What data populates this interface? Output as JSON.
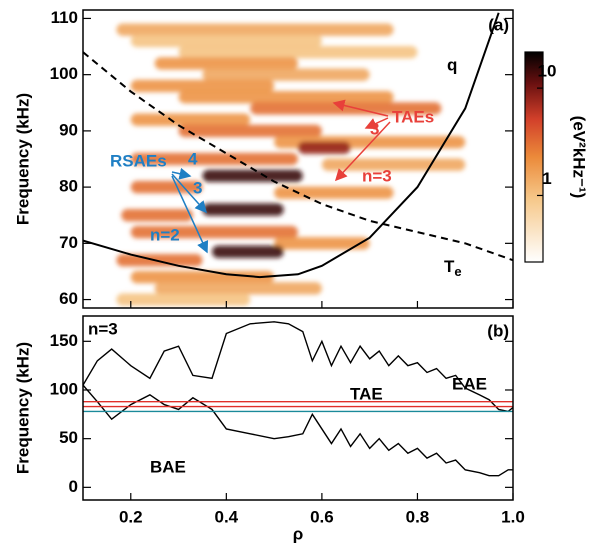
{
  "chart_data": [
    {
      "type": "spectrogram",
      "label": "(a)",
      "y_label": "Frequency (kHz)",
      "xlim": [
        0.1,
        1.0
      ],
      "ylim": [
        58.5,
        111.5
      ],
      "yticks": [
        60,
        70,
        80,
        90,
        100,
        110
      ],
      "colorbar": {
        "label": "(eV²kHz⁻¹)",
        "lim": [
          0.24,
          21.7
        ],
        "ticks": [
          1,
          10
        ],
        "log": true
      },
      "bands": {
        "freq": [
          108,
          106,
          104,
          102,
          100,
          98,
          96,
          94,
          92,
          90,
          88,
          87,
          85,
          84,
          82,
          80,
          79,
          76,
          75,
          72,
          70,
          68.5,
          67,
          64,
          62,
          60
        ],
        "rho_start": [
          0.17,
          0.2,
          0.3,
          0.25,
          0.35,
          0.2,
          0.3,
          0.45,
          0.2,
          0.3,
          0.5,
          0.55,
          0.2,
          0.6,
          0.35,
          0.2,
          0.5,
          0.35,
          0.18,
          0.2,
          0.5,
          0.37,
          0.17,
          0.2,
          0.25,
          0.17
        ],
        "rho_end": [
          0.75,
          0.6,
          0.8,
          0.55,
          0.7,
          0.5,
          0.75,
          0.85,
          0.45,
          0.6,
          0.9,
          0.66,
          0.55,
          0.9,
          0.56,
          0.35,
          0.75,
          0.52,
          0.33,
          0.55,
          0.7,
          0.52,
          0.35,
          0.5,
          0.6,
          0.45
        ],
        "level": [
          1.5,
          1,
          1,
          2,
          1.5,
          2,
          2,
          3,
          2,
          3,
          2,
          8,
          3,
          1.5,
          15,
          3,
          2,
          15,
          3,
          3,
          2,
          15,
          3,
          2,
          1.5,
          1
        ]
      },
      "series": [
        {
          "name": "q",
          "color": "#000000",
          "dashed": false,
          "x": [
            0.1,
            0.2,
            0.3,
            0.4,
            0.47,
            0.55,
            0.6,
            0.7,
            0.8,
            0.9,
            0.97
          ],
          "values": [
            70.5,
            68,
            66,
            64.5,
            64,
            64.5,
            66,
            71,
            80,
            94,
            111
          ]
        },
        {
          "name": "Te",
          "color": "#000000",
          "dashed": true,
          "x": [
            0.1,
            0.2,
            0.3,
            0.4,
            0.5,
            0.6,
            0.7,
            0.8,
            0.9,
            1.0
          ],
          "values": [
            104,
            97,
            91,
            86,
            81,
            77,
            74,
            72,
            70,
            67
          ]
        }
      ],
      "annotations_tae": [
        "TAEs",
        "3",
        "n=3"
      ],
      "annotations_rsae": [
        "RSAEs",
        "4",
        "3",
        "n=2"
      ]
    },
    {
      "type": "line",
      "label": "(b)",
      "y_label": "Frequency (kHz)",
      "x_label": "ρ",
      "xlim": [
        0.1,
        1.0
      ],
      "xticks": [
        0.2,
        0.4,
        0.6,
        0.8,
        {
          "value": 1.0,
          "label": "1.0"
        }
      ],
      "ylim": [
        -13,
        176
      ],
      "yticks": [
        0,
        50,
        100,
        150
      ],
      "annotations": [
        "n=3",
        "EAE",
        "TAE",
        "BAE"
      ],
      "series": [
        {
          "color": "#000000",
          "x": [
            0.1,
            0.13,
            0.16,
            0.2,
            0.24,
            0.27,
            0.3,
            0.33,
            0.37,
            0.4,
            0.45,
            0.5,
            0.53,
            0.56,
            0.58,
            0.6,
            0.62,
            0.64,
            0.66,
            0.68,
            0.7,
            0.72,
            0.74,
            0.76,
            0.78,
            0.8,
            0.82,
            0.84,
            0.86,
            0.88,
            0.9,
            0.93,
            0.95,
            0.97,
            0.99,
            1.0
          ],
          "values": [
            105,
            130,
            142,
            125,
            112,
            140,
            145,
            115,
            112,
            158,
            168,
            170,
            168,
            160,
            130,
            150,
            125,
            145,
            128,
            145,
            132,
            140,
            125,
            135,
            125,
            128,
            118,
            122,
            112,
            115,
            102,
            95,
            90,
            80,
            78,
            82
          ]
        },
        {
          "color": "#000000",
          "x": [
            0.1,
            0.13,
            0.16,
            0.2,
            0.24,
            0.27,
            0.3,
            0.33,
            0.37,
            0.4,
            0.45,
            0.5,
            0.53,
            0.56,
            0.58,
            0.6,
            0.62,
            0.64,
            0.66,
            0.68,
            0.7,
            0.72,
            0.74,
            0.76,
            0.78,
            0.8,
            0.82,
            0.84,
            0.86,
            0.88,
            0.9,
            0.93,
            0.95,
            0.97,
            0.99,
            1.0
          ],
          "values": [
            105,
            88,
            70,
            85,
            95,
            85,
            80,
            92,
            80,
            60,
            55,
            50,
            52,
            55,
            75,
            60,
            45,
            60,
            42,
            55,
            40,
            50,
            38,
            45,
            35,
            40,
            30,
            35,
            25,
            28,
            18,
            15,
            12,
            12,
            18,
            18
          ]
        },
        {
          "color": "#e0302a",
          "x": [
            0.1,
            1.0
          ],
          "values": [
            88,
            88
          ]
        },
        {
          "color": "#e0302a",
          "x": [
            0.1,
            1.0
          ],
          "values": [
            83,
            83
          ]
        },
        {
          "color": "#1a8a9a",
          "x": [
            0.1,
            1.0
          ],
          "values": [
            78,
            78
          ]
        }
      ]
    }
  ]
}
